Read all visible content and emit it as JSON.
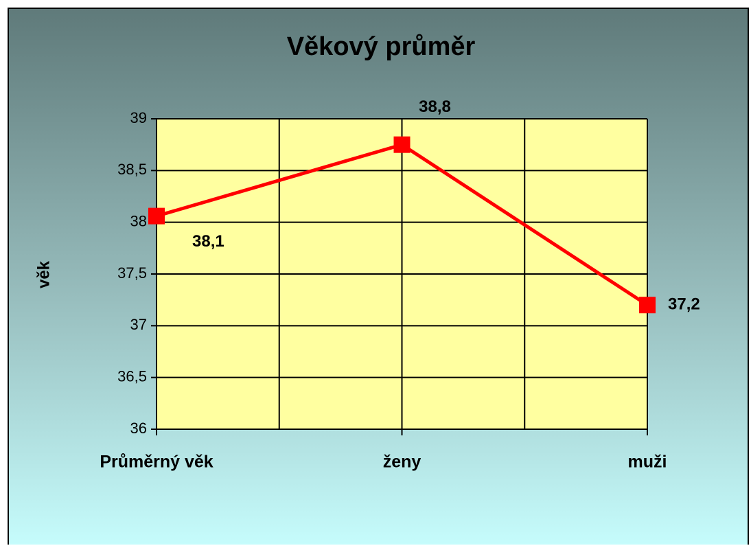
{
  "chart_data": {
    "type": "line",
    "title": "Věkový průměr",
    "ylabel": "věk",
    "categories": [
      "Průměrný věk",
      "ženy",
      "muži"
    ],
    "values": [
      38.06,
      38.75,
      37.2
    ],
    "value_labels": [
      "38,1",
      "38,8",
      "37,2"
    ],
    "color": "#ff0000",
    "ylim": [
      36,
      39
    ],
    "yticks": [
      36,
      {
        "value": 36.5,
        "label": "36,5"
      },
      37,
      {
        "value": 37.5,
        "label": "37,5"
      },
      38,
      {
        "value": 38.5,
        "label": "38,5"
      },
      39
    ],
    "grid": true
  }
}
